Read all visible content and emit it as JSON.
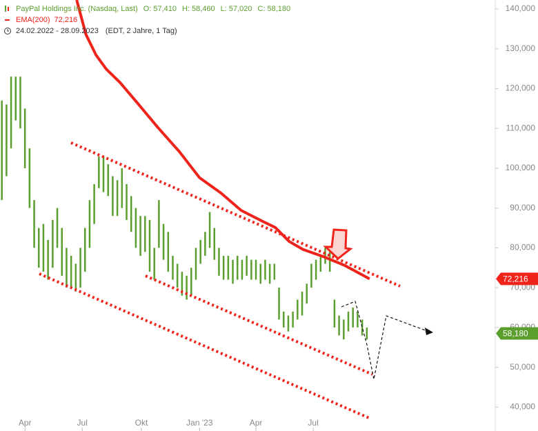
{
  "chart_data": {
    "type": "ohlc",
    "header": {
      "instrument": "PayPal Holdings Inc. (Nasdaq, Last)",
      "quote": [
        {
          "label": "O:",
          "text": "57,410"
        },
        {
          "label": "H:",
          "text": "58,460"
        },
        {
          "label": "L:",
          "text": "57,020"
        },
        {
          "label": "C:",
          "text": "58,180"
        }
      ],
      "period": "24.02.2022 - 28.09.2023",
      "period_note": "(EDT, 2 Jahre, 1 Tag)"
    },
    "xlim": [
      -2,
      534
    ],
    "xticks": [
      {
        "value": 25,
        "label": "Apr"
      },
      {
        "value": 87,
        "label": "Jul"
      },
      {
        "value": 151,
        "label": "Okt"
      },
      {
        "value": 214,
        "label": "Jan '23"
      },
      {
        "value": 275,
        "label": "Apr"
      },
      {
        "value": 337,
        "label": "Jul"
      }
    ],
    "ylim": [
      34000,
      142250
    ],
    "yticks": [
      {
        "value": 40000,
        "label": "40,000"
      },
      {
        "value": 50000,
        "label": "50,000"
      },
      {
        "value": 60000,
        "label": "60,000"
      },
      {
        "value": 70000,
        "label": "70,000"
      },
      {
        "value": 80000,
        "label": "80,000"
      },
      {
        "value": 90000,
        "label": "90,000"
      },
      {
        "value": 100000,
        "label": "100,000"
      },
      {
        "value": 110000,
        "label": "110,000"
      },
      {
        "value": 120000,
        "label": "120,000"
      },
      {
        "value": 130000,
        "label": "130,000"
      },
      {
        "value": 140000,
        "label": "140,000"
      }
    ],
    "series": [
      {
        "name": "PayPal Holdings Inc.",
        "color": "#5a9e2e",
        "last_label": "58,180",
        "x": [
          0,
          5,
          10,
          15,
          20,
          25,
          30,
          35,
          40,
          45,
          50,
          55,
          60,
          65,
          70,
          75,
          80,
          85,
          90,
          95,
          100,
          105,
          110,
          115,
          120,
          125,
          130,
          135,
          140,
          145,
          150,
          155,
          160,
          165,
          170,
          175,
          180,
          185,
          190,
          195,
          200,
          205,
          210,
          215,
          220,
          225,
          230,
          235,
          240,
          245,
          250,
          255,
          260,
          265,
          270,
          275,
          280,
          285,
          290,
          295,
          300,
          305,
          310,
          315,
          320,
          325,
          330,
          335,
          340,
          345,
          350,
          355,
          360,
          365,
          370,
          375,
          380,
          385,
          390,
          395
        ],
        "low": [
          92000,
          98000,
          105000,
          112000,
          110000,
          100000,
          90000,
          80000,
          75000,
          74000,
          72000,
          75000,
          80000,
          73000,
          70000,
          70000,
          69000,
          70000,
          74000,
          80000,
          86000,
          95000,
          94000,
          93000,
          88000,
          88000,
          90000,
          87000,
          84000,
          80000,
          78000,
          79000,
          74000,
          72000,
          80000,
          77000,
          74000,
          72000,
          70000,
          68000,
          67000,
          68000,
          72000,
          76000,
          78000,
          80000,
          77000,
          73000,
          72000,
          72000,
          71000,
          72000,
          72000,
          73000,
          72000,
          72000,
          71000,
          72000,
          71000,
          72000,
          62000,
          60000,
          59000,
          60000,
          62000,
          63000,
          66000,
          70000,
          72000,
          74000,
          76000,
          74000,
          60000,
          58000,
          57000,
          59000,
          60000,
          60000,
          58000,
          57000
        ],
        "high": [
          117000,
          116000,
          123000,
          123000,
          123000,
          115000,
          105000,
          92000,
          85000,
          86000,
          82000,
          87000,
          90000,
          85000,
          80000,
          78000,
          76000,
          80000,
          85000,
          92000,
          96000,
          103000,
          103000,
          101000,
          98000,
          97000,
          100000,
          96000,
          93000,
          90000,
          88000,
          88000,
          87000,
          80000,
          92000,
          86000,
          84000,
          78000,
          76000,
          74000,
          73000,
          75000,
          80000,
          82000,
          84000,
          89000,
          85000,
          80000,
          78000,
          78000,
          77000,
          78000,
          77000,
          78000,
          77000,
          77000,
          76000,
          77000,
          76000,
          76000,
          70000,
          64000,
          63000,
          64000,
          67000,
          69000,
          71000,
          76000,
          77000,
          78000,
          80000,
          79000,
          67000,
          63000,
          62000,
          64000,
          65000,
          64000,
          62000,
          60000
        ]
      },
      {
        "name": "EMA(200)",
        "color": "#f0231b",
        "last_label": "72,216",
        "x": [
          81,
          91,
          102,
          113,
          128,
          147,
          169,
          192,
          214,
          237,
          259,
          281,
          296,
          311,
          326,
          348,
          371,
          398
        ],
        "values": [
          142250,
          133600,
          128400,
          124900,
          121500,
          116300,
          110200,
          104200,
          97600,
          93800,
          89400,
          86800,
          85100,
          81600,
          79600,
          77800,
          75600,
          72216
        ]
      }
    ]
  }
}
